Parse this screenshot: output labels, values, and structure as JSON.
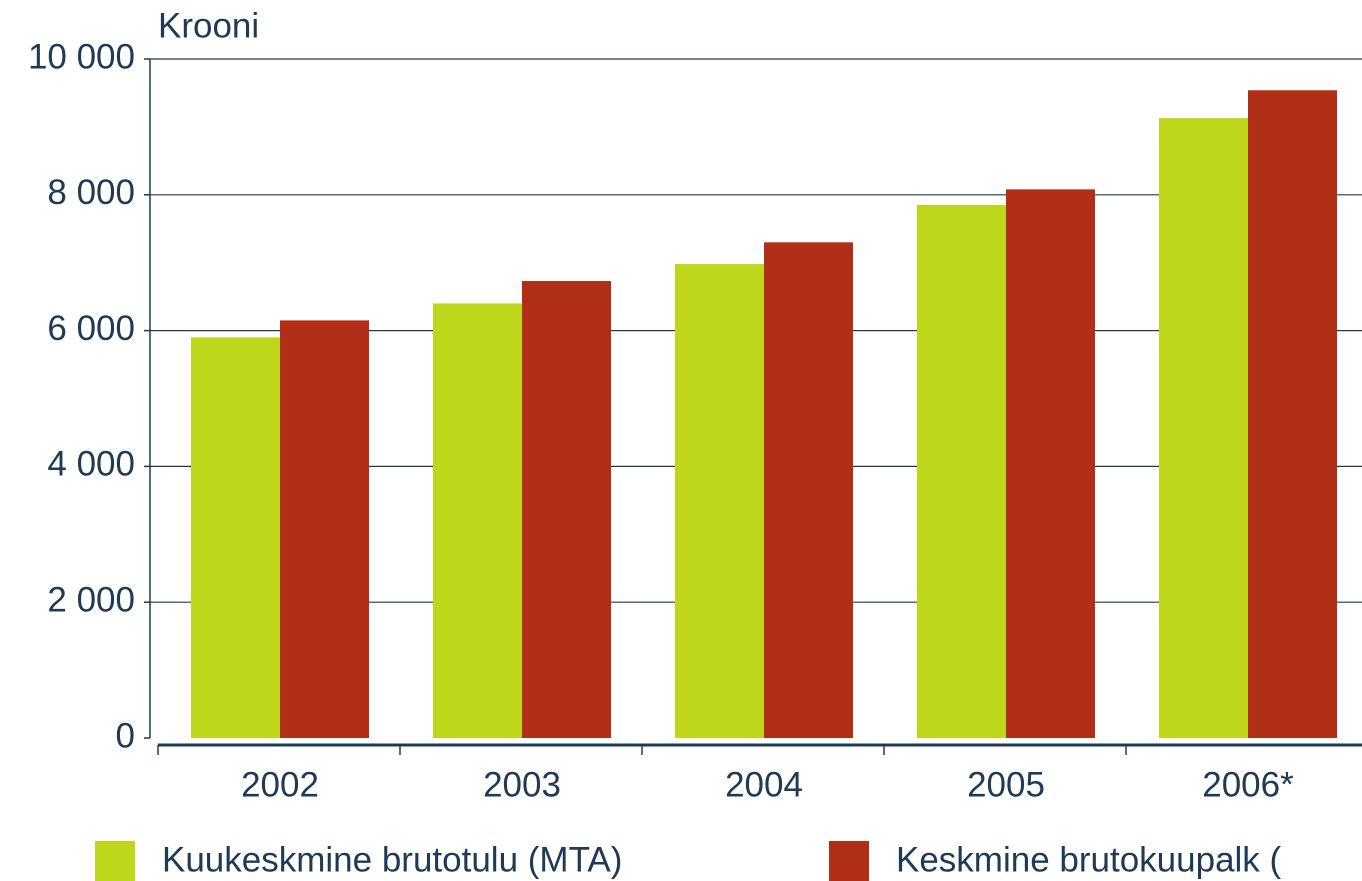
{
  "chart_data": {
    "type": "bar",
    "y_label": "Krooni",
    "categories": [
      "2002",
      "2003",
      "2004",
      "2005",
      "2006*"
    ],
    "series": [
      {
        "name": "Kuukeskmine brutotulu (MTA)",
        "color": "#bed71a",
        "values": [
          5900,
          6400,
          6980,
          7850,
          9130
        ]
      },
      {
        "name": "Keskmine brutokuupalk (",
        "color": "#b22f17",
        "values": [
          6150,
          6730,
          7300,
          8080,
          9540
        ]
      }
    ],
    "ylim": [
      0,
      10000
    ],
    "yticks": [
      0,
      {
        "value": 2000,
        "label": "2 000"
      },
      {
        "value": 4000,
        "label": "4 000"
      },
      {
        "value": 6000,
        "label": "6 000"
      },
      {
        "value": 8000,
        "label": "8 000"
      },
      {
        "value": 10000,
        "label": "10 000"
      }
    ],
    "grid": true
  }
}
